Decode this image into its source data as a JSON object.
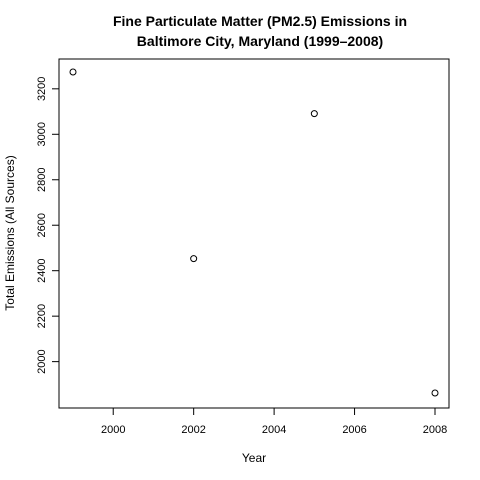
{
  "chart_data": {
    "type": "scatter",
    "title": [
      "Fine Particulate Matter (PM2.5) Emissions in",
      "Baltimore City, Maryland (1999–2008)"
    ],
    "xlabel": "Year",
    "ylabel": "Total Emissions (All Sources)",
    "xlim": [
      1999,
      2008
    ],
    "ylim": [
      1862,
      3274
    ],
    "xticks": [
      2000,
      2002,
      2004,
      2006,
      2008
    ],
    "yticks": [
      2000,
      2200,
      2400,
      2600,
      2800,
      3000,
      3200
    ],
    "x": [
      1999,
      2002,
      2005,
      2008
    ],
    "y": [
      3274,
      2453,
      3091,
      1862
    ],
    "marker": "open-circle",
    "grid": false,
    "colors": {
      "point": "#000000",
      "axis": "#000000",
      "background": "#ffffff"
    }
  }
}
